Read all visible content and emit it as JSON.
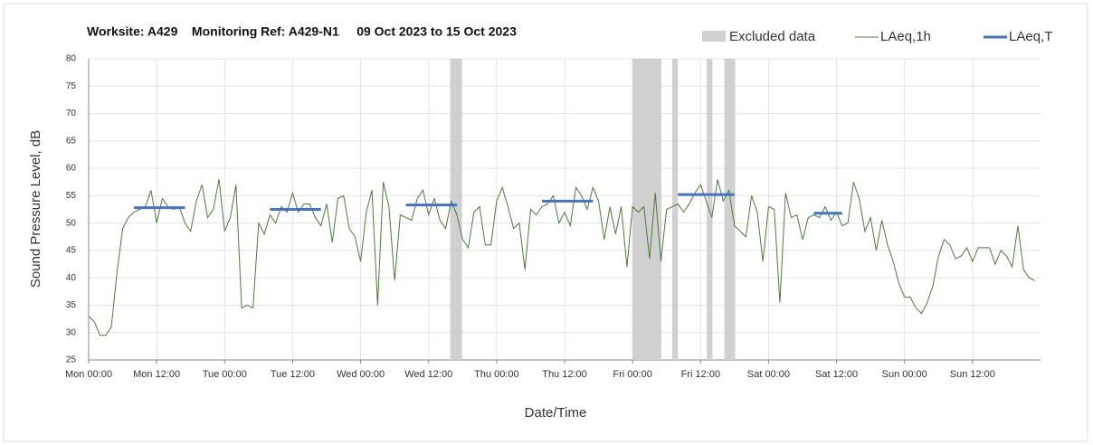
{
  "chart_data": {
    "type": "line",
    "title": "Worksite: A429    Monitoring Ref: A429-N1     09 Oct 2023 to 15 Oct 2023",
    "y_label": "Sound Pressure Level, dB",
    "x_label": "Date/Time",
    "xlim": [
      0,
      168
    ],
    "ylim": [
      25,
      80
    ],
    "yticks": [
      25,
      30,
      35,
      40,
      45,
      50,
      55,
      60,
      65,
      70,
      75,
      80
    ],
    "xticks": [
      {
        "value": 0,
        "label": "Mon 00:00"
      },
      {
        "value": 12,
        "label": "Mon 12:00"
      },
      {
        "value": 24,
        "label": "Tue 00:00"
      },
      {
        "value": 36,
        "label": "Tue 12:00"
      },
      {
        "value": 48,
        "label": "Wed 00:00"
      },
      {
        "value": 60,
        "label": "Wed 12:00"
      },
      {
        "value": 72,
        "label": "Thu 00:00"
      },
      {
        "value": 84,
        "label": "Thu 12:00"
      },
      {
        "value": 96,
        "label": "Fri 00:00"
      },
      {
        "value": 108,
        "label": "Fri 12:00"
      },
      {
        "value": 120,
        "label": "Sat 00:00"
      },
      {
        "value": 132,
        "label": "Sat 12:00"
      },
      {
        "value": 144,
        "label": "Sun 00:00"
      },
      {
        "value": 156,
        "label": "Sun 12:00"
      }
    ],
    "grid": true,
    "excluded": {
      "name": "Excluded data",
      "color": "#d0d0d0",
      "ranges": [
        [
          63.8,
          65.9
        ],
        [
          96,
          101.1
        ],
        [
          103,
          104
        ],
        [
          109.1,
          110.1
        ],
        [
          112.2,
          114.1
        ]
      ]
    },
    "x": [
      0,
      1,
      2,
      3,
      4,
      5,
      6,
      7,
      8,
      9,
      10,
      11,
      12,
      13,
      14,
      15,
      16,
      17,
      18,
      19,
      20,
      21,
      22,
      23,
      24,
      25,
      26,
      27,
      28,
      29,
      30,
      31,
      32,
      33,
      34,
      35,
      36,
      37,
      38,
      39,
      40,
      41,
      42,
      43,
      44,
      45,
      46,
      47,
      48,
      49,
      50,
      51,
      52,
      53,
      54,
      55,
      56,
      57,
      58,
      59,
      60,
      61,
      62,
      63,
      64,
      65,
      66,
      67,
      68,
      69,
      70,
      71,
      72,
      73,
      74,
      75,
      76,
      77,
      78,
      79,
      80,
      81,
      82,
      83,
      84,
      85,
      86,
      87,
      88,
      89,
      90,
      91,
      92,
      93,
      94,
      95,
      96,
      97,
      98,
      99,
      100,
      101,
      102,
      103,
      104,
      105,
      106,
      107,
      108,
      109,
      110,
      111,
      112,
      113,
      114,
      115,
      116,
      117,
      118,
      119,
      120,
      121,
      122,
      123,
      124,
      125,
      126,
      127,
      128,
      129,
      130,
      131,
      132,
      133,
      134,
      135,
      136,
      137,
      138,
      139,
      140,
      141,
      142,
      143,
      144,
      145,
      146,
      147,
      148,
      149,
      150,
      151,
      152,
      153,
      154,
      155,
      156,
      157,
      158,
      159,
      160,
      161,
      162,
      163,
      164,
      165,
      166,
      167
    ],
    "series": [
      {
        "name": "LAeq,1h",
        "color": "#4e7a3a",
        "values": [
          33,
          32,
          29.5,
          29.5,
          31,
          41,
          49,
          51,
          52,
          52.5,
          53,
          56,
          50,
          54.5,
          53,
          52.5,
          53,
          50,
          48.5,
          54,
          57,
          51,
          52.5,
          58,
          48.5,
          51,
          57,
          34.5,
          35,
          34.5,
          50,
          48,
          51.5,
          50,
          53,
          52,
          55.5,
          52,
          53.5,
          53.5,
          51,
          49.5,
          53.5,
          46.5,
          54.5,
          55,
          49,
          47.5,
          43,
          52,
          56,
          35,
          57.5,
          53,
          39.5,
          51.5,
          51,
          50.5,
          54.5,
          56,
          51.5,
          54.5,
          50.5,
          49,
          54,
          51.5,
          47,
          45.5,
          52,
          53,
          46,
          46,
          54,
          56.5,
          53,
          49,
          50,
          41.5,
          52.5,
          51.5,
          53,
          53.5,
          55,
          50,
          52,
          49.5,
          56.5,
          55,
          52.5,
          56.5,
          54,
          47,
          53,
          48,
          53,
          42,
          53,
          52,
          53,
          43.5,
          55.5,
          43,
          52.5,
          53,
          53.5,
          52,
          53.5,
          55.5,
          57,
          54,
          51,
          58,
          54,
          56,
          49.5,
          48.5,
          47.5,
          55,
          52,
          43,
          53,
          52.5,
          35.5,
          55.5,
          51,
          51.5,
          47,
          51,
          51.5,
          51,
          53,
          50.5,
          52,
          49.5,
          50,
          57.5,
          54.5,
          48.5,
          51,
          45,
          50.5,
          46,
          43,
          39,
          36.5,
          36.5,
          34.5,
          33.5,
          35.5,
          38.5,
          44,
          47,
          46,
          43.5,
          44,
          45.5,
          43,
          45.5,
          45.5,
          45.5,
          42.5,
          45,
          44,
          42,
          49.5,
          41.5,
          40,
          39.5
        ]
      },
      {
        "name": "LAeq,T",
        "color": "#4472c4",
        "segments": [
          {
            "start": 8,
            "end": 17,
            "value": 52.8
          },
          {
            "start": 32,
            "end": 41,
            "value": 52.5
          },
          {
            "start": 56,
            "end": 65,
            "value": 53.3
          },
          {
            "start": 80,
            "end": 89,
            "value": 54
          },
          {
            "start": 104,
            "end": 114,
            "value": 55.2
          },
          {
            "start": 128,
            "end": 133,
            "value": 51.8
          }
        ]
      }
    ]
  }
}
